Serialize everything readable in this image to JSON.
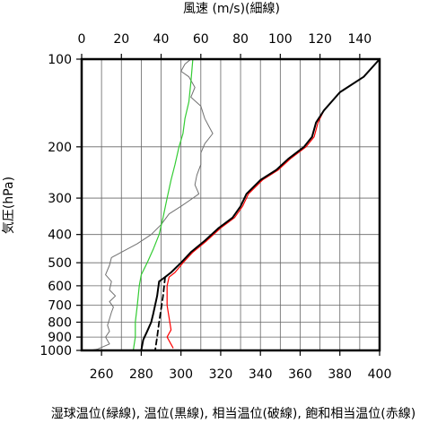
{
  "chart_data": {
    "type": "line",
    "top_axis": {
      "label": "風速 (m/s)(細線)",
      "ticks": [
        0,
        20,
        40,
        60,
        80,
        100,
        120,
        140
      ],
      "range": [
        0,
        150
      ]
    },
    "bottom_axis": {
      "label": "湿球温位(緑線), 温位(黒線), 相当温位(破線), 飽和相当温位(赤線)",
      "ticks": [
        260,
        280,
        300,
        320,
        340,
        360,
        380,
        400
      ],
      "range": [
        250,
        400
      ]
    },
    "y_axis": {
      "label": "気圧(hPa)",
      "scale": "log",
      "reversed": true,
      "range": [
        100,
        1000
      ],
      "ticks": [
        100,
        200,
        300,
        400,
        500,
        600,
        700,
        800,
        900,
        1000
      ],
      "tick_labels": [
        "100",
        "200",
        "300",
        "400",
        "500",
        "600",
        "700",
        "800",
        "900",
        "1000"
      ]
    },
    "grid": true,
    "series": [
      {
        "key": "wind",
        "color": "#707070",
        "style": "thin",
        "axis": "top",
        "points": [
          [
            55,
            100
          ],
          [
            52,
            104
          ],
          [
            50,
            110
          ],
          [
            54,
            115
          ],
          [
            57,
            125
          ],
          [
            55,
            135
          ],
          [
            60,
            145
          ],
          [
            62,
            160
          ],
          [
            64,
            170
          ],
          [
            66,
            180
          ],
          [
            62,
            195
          ],
          [
            60,
            210
          ],
          [
            60,
            230
          ],
          [
            58,
            250
          ],
          [
            57,
            270
          ],
          [
            59,
            290
          ],
          [
            56,
            300
          ],
          [
            50,
            320
          ],
          [
            44,
            340
          ],
          [
            40,
            370
          ],
          [
            35,
            400
          ],
          [
            28,
            430
          ],
          [
            20,
            460
          ],
          [
            15,
            480
          ],
          [
            14,
            510
          ],
          [
            12,
            550
          ],
          [
            15,
            580
          ],
          [
            14,
            620
          ],
          [
            17,
            650
          ],
          [
            14,
            680
          ],
          [
            16,
            710
          ],
          [
            15,
            740
          ],
          [
            14,
            780
          ],
          [
            13,
            820
          ],
          [
            14,
            860
          ],
          [
            12,
            900
          ],
          [
            14,
            950
          ],
          [
            8,
            990
          ],
          [
            4,
            1000
          ]
        ]
      },
      {
        "key": "wet_bulb_potential_temperature",
        "color": "#33cc33",
        "style": "solid",
        "axis": "bottom",
        "points": [
          [
            306,
            100
          ],
          [
            305,
            120
          ],
          [
            304,
            140
          ],
          [
            302,
            160
          ],
          [
            301,
            180
          ],
          [
            299,
            200
          ],
          [
            297,
            230
          ],
          [
            295,
            260
          ],
          [
            293,
            300
          ],
          [
            291,
            350
          ],
          [
            289,
            400
          ],
          [
            286,
            450
          ],
          [
            283,
            500
          ],
          [
            280,
            550
          ],
          [
            279,
            600
          ],
          [
            278,
            700
          ],
          [
            277,
            800
          ],
          [
            277,
            900
          ],
          [
            276,
            1000
          ]
        ]
      },
      {
        "key": "potential_temperature",
        "color": "#000000",
        "style": "solid",
        "axis": "bottom",
        "points": [
          [
            400,
            100
          ],
          [
            392,
            115
          ],
          [
            380,
            130
          ],
          [
            372,
            150
          ],
          [
            368,
            165
          ],
          [
            366,
            185
          ],
          [
            362,
            200
          ],
          [
            354,
            220
          ],
          [
            348,
            240
          ],
          [
            340,
            260
          ],
          [
            333,
            290
          ],
          [
            330,
            320
          ],
          [
            326,
            350
          ],
          [
            319,
            380
          ],
          [
            312,
            420
          ],
          [
            305,
            460
          ],
          [
            300,
            500
          ],
          [
            295,
            540
          ],
          [
            292,
            560
          ],
          [
            289,
            580
          ],
          [
            288,
            650
          ],
          [
            286,
            750
          ],
          [
            285,
            800
          ],
          [
            283,
            860
          ],
          [
            281,
            920
          ],
          [
            280,
            1000
          ]
        ]
      },
      {
        "key": "equivalent_potential_temperature",
        "color": "#000000",
        "style": "dashed",
        "axis": "bottom",
        "points": [
          [
            292,
            560
          ],
          [
            291,
            650
          ],
          [
            289,
            800
          ],
          [
            288,
            900
          ],
          [
            287,
            1000
          ]
        ]
      },
      {
        "key": "saturated_equivalent_potential_temperature",
        "color": "#ff0000",
        "style": "solid",
        "axis": "bottom",
        "points": [
          [
            400,
            100
          ],
          [
            392,
            115
          ],
          [
            380,
            130
          ],
          [
            372,
            150
          ],
          [
            369,
            165
          ],
          [
            367,
            185
          ],
          [
            363,
            200
          ],
          [
            355,
            220
          ],
          [
            349,
            240
          ],
          [
            341,
            260
          ],
          [
            334,
            290
          ],
          [
            331,
            320
          ],
          [
            327,
            350
          ],
          [
            320,
            380
          ],
          [
            313,
            420
          ],
          [
            306,
            460
          ],
          [
            301,
            500
          ],
          [
            297,
            540
          ],
          [
            294,
            560
          ],
          [
            293,
            600
          ],
          [
            293,
            700
          ],
          [
            295,
            850
          ],
          [
            293,
            900
          ],
          [
            296,
            980
          ]
        ]
      }
    ]
  }
}
